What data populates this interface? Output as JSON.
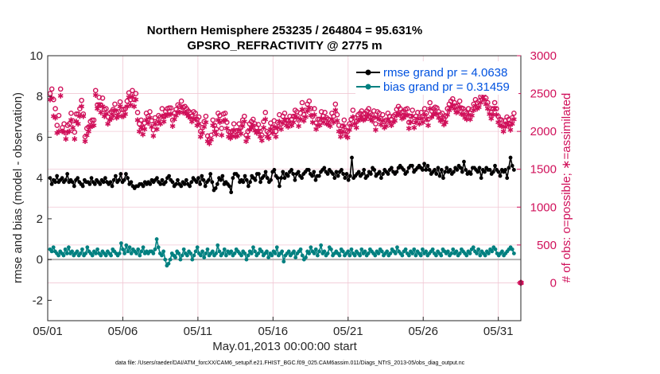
{
  "chart_data": {
    "type": "line",
    "title": "Northern Hemisphere 253235 / 264804 = 95.631%",
    "subtitle": "GPSRO_REFRACTIVITY @ 2775 m",
    "xlabel": "May.01,2013 00:00:00 start",
    "ylabel": "rmse and bias (model - observation)",
    "ylabel_right": "# of obs: o=possible; ∗=assimilated",
    "xlim": [
      0,
      31.5
    ],
    "ylim": [
      -3,
      10
    ],
    "ylim_right": [
      -500,
      3000
    ],
    "x_ticks": [
      0,
      5,
      10,
      15,
      20,
      25,
      30
    ],
    "x_tick_labels": [
      "05/01",
      "05/06",
      "05/11",
      "05/16",
      "05/21",
      "05/26",
      "05/31"
    ],
    "y_ticks": [
      -2,
      0,
      2,
      4,
      6,
      8,
      10
    ],
    "y_ticks_right": [
      0,
      500,
      1000,
      1500,
      2000,
      2500,
      3000
    ],
    "grid": true,
    "legend_position": "top-right",
    "footnote": "data file: /Users/raeder/DAI/ATM_forcXX/CAM6_setup/f.e21.FHIST_BGC.f09_025.CAM6assim.011/Diags_NTrS_2013-05/obs_diag_output.nc",
    "colors": {
      "rmse": "#000000",
      "bias": "#008080",
      "obs": "#d0105a",
      "zero_line": "#b3b3b3",
      "grid": "#f0c8d4"
    },
    "series": [
      {
        "name": "rmse grand pr = 4.0638",
        "key": "rmse",
        "color": "#000000",
        "values": [
          4.0,
          3.7,
          3.9,
          3.8,
          4.1,
          3.8,
          3.9,
          4.0,
          3.8,
          3.9,
          4.2,
          3.8,
          3.9,
          3.8,
          3.6,
          3.9,
          4.0,
          3.8,
          3.7,
          3.6,
          3.9,
          3.8,
          3.8,
          3.7,
          4.0,
          3.8,
          3.7,
          3.9,
          3.8,
          3.7,
          3.9,
          3.8,
          4.0,
          3.8,
          3.7,
          3.8,
          3.6,
          3.9,
          4.1,
          3.8,
          3.9,
          4.2,
          3.8,
          3.9,
          4.2,
          4.0,
          3.7,
          3.8,
          3.6,
          3.5,
          3.6,
          3.6,
          3.7,
          3.7,
          3.6,
          3.8,
          3.7,
          3.8,
          3.7,
          3.9,
          3.8,
          3.9,
          4.0,
          3.8,
          3.7,
          3.9,
          3.7,
          3.8,
          4.0,
          4.1,
          3.9,
          3.8,
          3.6,
          3.7,
          3.9,
          3.7,
          3.6,
          3.8,
          3.7,
          3.9,
          3.7,
          3.6,
          3.8,
          4.0,
          3.9,
          3.8,
          4.0,
          3.7,
          4.1,
          3.9,
          3.6,
          3.8,
          3.9,
          4.2,
          3.8,
          3.4,
          3.5,
          3.7,
          4.0,
          3.9,
          4.1,
          3.7,
          3.8,
          3.7,
          3.6,
          3.3,
          4.0,
          4.2,
          4.2,
          4.1,
          3.8,
          3.9,
          3.8,
          4.1,
          3.9,
          3.6,
          3.8,
          4.1,
          4.0,
          3.9,
          4.2,
          4.2,
          3.8,
          4.0,
          4.1,
          4.3,
          4.0,
          3.8,
          3.9,
          4.3,
          4.4,
          4.1,
          4.0,
          3.6,
          4.0,
          4.3,
          4.0,
          4.2,
          4.1,
          4.3,
          4.4,
          4.2,
          3.9,
          4.2,
          4.3,
          4.1,
          4.0,
          4.2,
          4.3,
          4.4,
          4.4,
          4.2,
          4.1,
          4.3,
          3.9,
          4.1,
          4.1,
          4.3,
          4.4,
          4.5,
          4.3,
          4.2,
          4.4,
          4.3,
          4.2,
          4.0,
          4.3,
          4.1,
          4.3,
          4.4,
          4.2,
          4.0,
          4.2,
          3.9,
          4.1,
          5.0,
          4.0,
          4.1,
          4.2,
          4.3,
          4.1,
          4.2,
          4.4,
          4.0,
          4.1,
          4.3,
          4.2,
          4.5,
          4.4,
          4.1,
          4.2,
          4.3,
          4.0,
          4.2,
          4.4,
          4.3,
          4.2,
          4.4,
          4.5,
          4.3,
          4.2,
          4.3,
          4.5,
          4.6,
          4.5,
          4.4,
          4.2,
          4.3,
          4.5,
          4.6,
          4.6,
          4.3,
          4.4,
          4.5,
          4.6,
          4.5,
          4.4,
          4.7,
          4.4,
          4.6,
          4.4,
          4.2,
          4.3,
          4.4,
          4.2,
          4.5,
          4.1,
          4.4,
          4.0,
          4.3,
          4.5,
          4.3,
          4.4,
          4.2,
          4.3,
          4.5,
          4.4,
          4.6,
          4.5,
          4.3,
          4.8,
          4.4,
          4.2,
          4.3,
          4.2,
          4.5,
          4.5,
          4.4,
          4.3,
          4.5,
          4.0,
          4.4,
          4.3,
          4.5,
          4.4,
          4.4,
          4.2,
          4.3,
          4.6,
          4.4,
          4.3,
          4.1,
          4.4,
          4.3,
          4.4,
          4.0,
          4.5,
          5.0,
          4.6,
          4.4
        ]
      },
      {
        "name": "bias grand pr = 0.31459",
        "key": "bias",
        "color": "#008080",
        "values": [
          0.5,
          0.4,
          0.6,
          0.4,
          0.3,
          0.2,
          0.4,
          0.3,
          0.2,
          0.5,
          0.3,
          0.6,
          0.3,
          0.4,
          0.2,
          0.3,
          0.4,
          0.2,
          0.3,
          0.5,
          0.2,
          0.3,
          0.6,
          0.4,
          0.3,
          0.2,
          0.4,
          0.3,
          0.5,
          0.3,
          0.2,
          0.4,
          0.3,
          0.2,
          0.4,
          0.3,
          0.2,
          0.5,
          0.4,
          0.3,
          0.2,
          0.3,
          0.8,
          0.5,
          0.3,
          0.7,
          0.4,
          0.6,
          0.3,
          0.5,
          0.4,
          0.3,
          0.5,
          0.2,
          0.4,
          0.6,
          0.3,
          0.4,
          0.3,
          0.4,
          0.4,
          0.3,
          0.5,
          1.0,
          0.6,
          0.3,
          0.2,
          0.4,
          0.0,
          -0.3,
          -0.2,
          0.0,
          0.3,
          0.2,
          0.1,
          0.4,
          0.3,
          0.0,
          0.2,
          0.5,
          0.3,
          0.2,
          0.4,
          0.3,
          0.0,
          0.2,
          0.4,
          0.6,
          0.3,
          0.2,
          0.4,
          0.1,
          0.3,
          0.5,
          0.2,
          0.3,
          0.4,
          0.2,
          0.3,
          0.7,
          0.4,
          0.2,
          0.3,
          0.5,
          0.2,
          0.4,
          0.3,
          0.4,
          0.2,
          0.3,
          0.5,
          0.4,
          0.3,
          0.2,
          0.4,
          0.3,
          0.0,
          0.2,
          0.4,
          0.3,
          0.6,
          0.4,
          0.2,
          0.3,
          0.5,
          0.4,
          0.2,
          0.3,
          0.4,
          0.1,
          0.3,
          0.2,
          0.4,
          0.3,
          0.6,
          0.2,
          0.3,
          0.4,
          -0.1,
          0.2,
          0.3,
          0.4,
          0.2,
          0.3,
          0.4,
          0.1,
          0.3,
          0.4,
          0.5,
          0.2,
          0.0,
          0.1,
          0.4,
          0.3,
          0.6,
          0.4,
          0.3,
          0.5,
          0.2,
          0.4,
          0.7,
          0.3,
          0.4,
          0.2,
          0.3,
          0.6,
          0.5,
          0.2,
          0.3,
          0.4,
          0.3,
          0.2,
          0.5,
          0.4,
          0.2,
          0.3,
          0.4,
          0.2,
          0.5,
          0.3,
          0.2,
          0.4,
          0.3,
          0.2,
          0.5,
          0.3,
          0.4,
          0.2,
          0.3,
          0.5,
          0.4,
          0.3,
          0.2,
          0.4,
          0.3,
          0.5,
          0.4,
          0.2,
          0.3,
          0.4,
          0.2,
          0.3,
          0.5,
          0.4,
          0.3,
          0.6,
          0.4,
          0.3,
          0.2,
          0.4,
          0.5,
          0.3,
          0.2,
          0.4,
          0.3,
          0.5,
          0.2,
          0.4,
          0.3,
          0.2,
          0.5,
          0.3,
          0.4,
          0.2,
          0.3,
          0.4,
          0.5,
          0.3,
          0.2,
          0.4,
          0.3,
          0.2,
          0.5,
          0.4,
          0.3,
          0.4,
          0.2,
          0.3,
          0.5,
          0.3,
          0.4,
          0.2,
          0.3,
          0.5,
          0.4,
          0.3,
          0.2,
          0.4,
          0.3,
          0.5,
          0.6,
          0.4,
          0.3,
          0.5,
          0.2,
          0.4,
          0.3,
          0.2,
          0.4,
          0.3,
          0.5,
          0.4,
          0.6,
          0.5,
          0.3,
          0.2,
          0.3,
          0.4,
          0.2,
          0.3,
          0.4,
          0.5,
          0.6,
          0.5,
          0.3
        ]
      },
      {
        "name": "",
        "key": "possible",
        "color": "#d0105a",
        "axis": "right",
        "marker": "o",
        "values": [
          2500,
          2560,
          2420,
          2300,
          2080,
          2210,
          2560,
          2050,
          2100,
          1980,
          2080,
          2100,
          2240,
          2140,
          1990,
          2230,
          2230,
          2300,
          2410,
          2230,
          1930,
          2040,
          2060,
          2130,
          2150,
          2150,
          2540,
          2350,
          2450,
          2350,
          2440,
          2290,
          2300,
          2190,
          2240,
          2260,
          2290,
          2360,
          2250,
          2260,
          2390,
          2290,
          2290,
          2300,
          2400,
          2510,
          2420,
          2540,
          2420,
          2500,
          2250,
          2100,
          2150,
          2050,
          2110,
          2240,
          2200,
          2260,
          2140,
          2020,
          2180,
          2110,
          2210,
          2190,
          2300,
          2200,
          2260,
          2300,
          2310,
          2310,
          2150,
          2240,
          2290,
          2350,
          2330,
          2400,
          2320,
          2330,
          2300,
          2270,
          2250,
          2200,
          2260,
          2240,
          2160,
          2190,
          2000,
          2050,
          2130,
          2200,
          1940,
          1900,
          1950,
          2150,
          2080,
          2030,
          2240,
          2210,
          2040,
          2230,
          2240,
          2120,
          2000,
          1990,
          2000,
          2100,
          2000,
          2010,
          2100,
          2050,
          2150,
          2200,
          1950,
          2000,
          2100,
          2130,
          2160,
          2100,
          2050,
          2090,
          2000,
          1950,
          2130,
          2250,
          2000,
          1980,
          2110,
          2050,
          2140,
          2000,
          2120,
          2220,
          2100,
          2200,
          2240,
          2150,
          2140,
          2200,
          2160,
          2200,
          2280,
          2260,
          2150,
          2240,
          2380,
          2220,
          2280,
          2360,
          2400,
          2300,
          2200,
          2300,
          2110,
          2160,
          2160,
          2260,
          2200,
          2250,
          2180,
          2160,
          2150,
          2240,
          2200,
          2360,
          2220,
          2080,
          2000,
          2070,
          2150,
          2010,
          2000,
          2100,
          2160,
          2280,
          2180,
          2130,
          2220,
          2240,
          2270,
          2230,
          2240,
          2270,
          2300,
          2240,
          2220,
          2270,
          2100,
          2260,
          2240,
          2170,
          2220,
          2130,
          2150,
          2240,
          2200,
          2160,
          2200,
          2220,
          2290,
          2330,
          2300,
          2250,
          2260,
          2290,
          2300,
          2120,
          2200,
          2280,
          2130,
          2200,
          2250,
          2180,
          2250,
          2200,
          2300,
          2240,
          2160,
          2380,
          2270,
          2300,
          2320,
          2310,
          2260,
          2220,
          2240,
          2170,
          2200,
          2300,
          2360,
          2400,
          2430,
          2380,
          2330,
          2340,
          2400,
          2310,
          2300,
          2260,
          2240,
          2300,
          2240,
          2290,
          2360,
          2420,
          2380,
          2400,
          2460,
          2530,
          2500,
          2440,
          2380,
          2310,
          2250,
          2300,
          2380,
          2300,
          2200,
          2160,
          2150,
          2080,
          2140,
          2190,
          2160,
          2100,
          2180,
          2240
        ]
      },
      {
        "name": "",
        "key": "assimilated",
        "color": "#d0105a",
        "axis": "right",
        "marker": "*",
        "values": [
          2420,
          2440,
          2200,
          2180,
          1980,
          2000,
          2470,
          2000,
          1990,
          1900,
          1990,
          2000,
          2150,
          2050,
          1900,
          2130,
          2100,
          2200,
          2330,
          2200,
          1870,
          1950,
          2000,
          2060,
          2070,
          2080,
          2480,
          2300,
          2350,
          2250,
          2330,
          2200,
          2230,
          2100,
          2150,
          2170,
          2210,
          2280,
          2180,
          2200,
          2330,
          2200,
          2200,
          2230,
          2330,
          2450,
          2350,
          2460,
          2330,
          2420,
          2150,
          2000,
          2050,
          1960,
          2030,
          2150,
          2110,
          2180,
          2060,
          1940,
          2100,
          2030,
          2130,
          2100,
          2200,
          2130,
          2200,
          2230,
          2220,
          2230,
          2070,
          2160,
          2210,
          2260,
          2250,
          2320,
          2250,
          2250,
          2230,
          2200,
          2180,
          2130,
          2170,
          2160,
          2080,
          2100,
          1930,
          1980,
          2060,
          2120,
          1870,
          1840,
          1890,
          2080,
          2000,
          1960,
          2150,
          2120,
          1950,
          2140,
          2150,
          2040,
          1930,
          1910,
          1940,
          2020,
          1930,
          1940,
          2020,
          1970,
          2070,
          2130,
          1870,
          1920,
          2020,
          2050,
          2080,
          2010,
          1980,
          2000,
          1930,
          1880,
          2050,
          2160,
          1930,
          1910,
          2030,
          1980,
          2060,
          1930,
          2050,
          2130,
          2030,
          2110,
          2150,
          2080,
          2060,
          2120,
          2080,
          2120,
          2200,
          2180,
          2070,
          2160,
          2290,
          2140,
          2190,
          2270,
          2310,
          2210,
          2120,
          2220,
          2030,
          2080,
          2080,
          2170,
          2120,
          2170,
          2100,
          2090,
          2070,
          2160,
          2120,
          2280,
          2140,
          2000,
          1930,
          1990,
          2070,
          1940,
          1920,
          2020,
          2080,
          2190,
          2100,
          2050,
          2140,
          2160,
          2190,
          2150,
          2160,
          2190,
          2220,
          2160,
          2140,
          2190,
          2020,
          2180,
          2160,
          2090,
          2140,
          2050,
          2070,
          2160,
          2120,
          2080,
          2120,
          2140,
          2210,
          2240,
          2220,
          2170,
          2180,
          2210,
          2220,
          2040,
          2120,
          2200,
          2050,
          2120,
          2170,
          2100,
          2170,
          2120,
          2220,
          2160,
          2080,
          2300,
          2190,
          2220,
          2240,
          2230,
          2180,
          2140,
          2160,
          2090,
          2120,
          2220,
          2280,
          2320,
          2350,
          2300,
          2250,
          2260,
          2320,
          2230,
          2220,
          2180,
          2160,
          2220,
          2160,
          2210,
          2280,
          2340,
          2300,
          2320,
          2380,
          2450,
          2420,
          2360,
          2300,
          2230,
          2170,
          2220,
          2300,
          2220,
          2120,
          2080,
          2070,
          2000,
          2060,
          2110,
          2080,
          2020,
          2100,
          2160
        ]
      }
    ],
    "outlier_right": {
      "x": 31.5,
      "y": 0,
      "marker": "o*"
    }
  }
}
